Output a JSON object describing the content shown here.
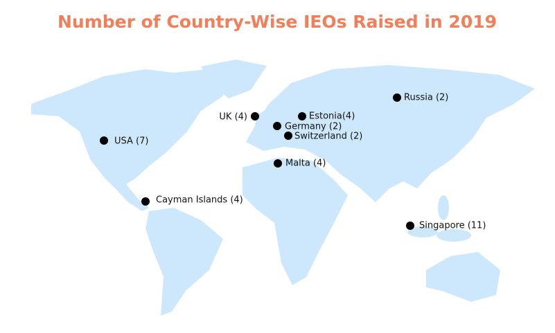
{
  "title": "Number of Country-Wise IEOs Raised in 2019",
  "markers": [
    {
      "label": "USA (7)"
    },
    {
      "label": "Cayman Islands (4)"
    },
    {
      "label": "UK (4)"
    },
    {
      "label": "Germany (2)"
    },
    {
      "label": "Estonia(4)"
    },
    {
      "label": "Switzerland (2)"
    },
    {
      "label": "Malta (4)"
    },
    {
      "label": "Russia (2)"
    },
    {
      "label": "Singapore (11)"
    }
  ]
}
